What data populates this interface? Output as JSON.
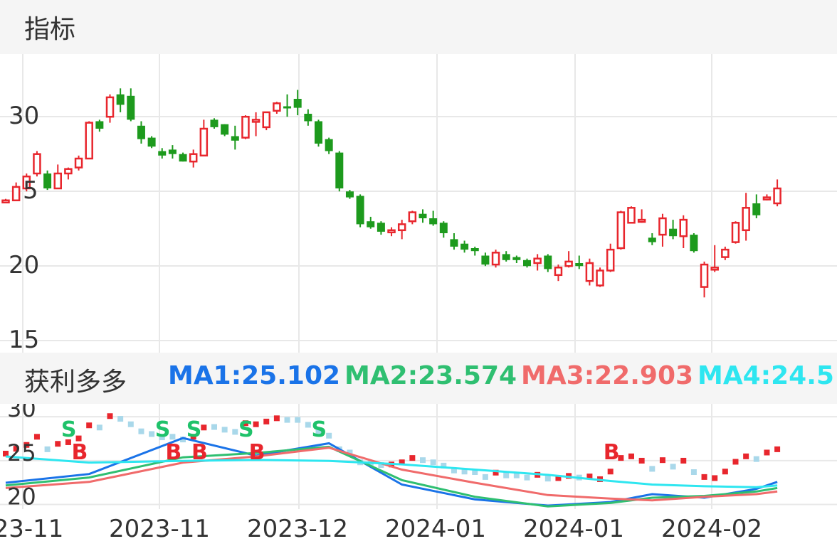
{
  "header": {
    "title": "指标"
  },
  "indicator": {
    "name": "获利多多",
    "ma1": "MA1:25.102",
    "ma2": "MA2:23.574",
    "ma3": "MA3:22.903",
    "ma4": "MA4:24.5"
  },
  "colors": {
    "up": "#e8262d",
    "down": "#1d9a1d",
    "ma1": "#1a73e8",
    "ma2": "#2fbf71",
    "ma3": "#f06b6b",
    "ma4": "#2ee6f0",
    "hist": "#a9d8ea"
  },
  "x_ticks": [
    "23-11",
    "2023-11",
    "2023-12",
    "2024-01",
    "2024-01",
    "2024-02"
  ],
  "chart_data": [
    {
      "type": "candlestick",
      "ylim": [
        14,
        34
      ],
      "y_ticks": [
        30,
        20,
        15
      ],
      "y_tick_label_25": "5",
      "ohlc": [
        [
          24.1,
          24.3,
          24.0,
          24.2
        ],
        [
          24.2,
          25.4,
          24.2,
          25.1
        ],
        [
          25.0,
          26.0,
          24.8,
          25.8
        ],
        [
          26.0,
          27.5,
          25.8,
          27.3
        ],
        [
          26.0,
          26.2,
          24.9,
          25.0
        ],
        [
          25.0,
          26.6,
          25.0,
          26.0
        ],
        [
          26.0,
          26.4,
          25.6,
          26.3
        ],
        [
          26.4,
          27.2,
          26.2,
          27.0
        ],
        [
          27.0,
          29.5,
          27.0,
          29.4
        ],
        [
          29.5,
          29.6,
          28.8,
          29.0
        ],
        [
          29.8,
          31.3,
          29.4,
          31.1
        ],
        [
          31.3,
          31.7,
          30.1,
          30.6
        ],
        [
          31.2,
          31.7,
          29.5,
          29.6
        ],
        [
          29.2,
          29.5,
          28.0,
          28.3
        ],
        [
          28.4,
          28.5,
          27.7,
          27.8
        ],
        [
          27.5,
          27.7,
          27.0,
          27.2
        ],
        [
          27.6,
          27.9,
          27.0,
          27.3
        ],
        [
          27.3,
          27.4,
          26.8,
          26.8
        ],
        [
          26.8,
          27.6,
          26.4,
          27.3
        ],
        [
          27.2,
          29.6,
          27.2,
          29.0
        ],
        [
          29.6,
          29.7,
          29.0,
          29.1
        ],
        [
          29.3,
          29.3,
          28.5,
          28.6
        ],
        [
          28.5,
          29.2,
          27.6,
          28.2
        ],
        [
          28.4,
          29.9,
          28.3,
          29.8
        ],
        [
          29.5,
          30.1,
          28.5,
          29.6
        ],
        [
          29.1,
          30.1,
          28.9,
          30.1
        ],
        [
          30.2,
          30.8,
          30.0,
          30.7
        ],
        [
          30.5,
          31.3,
          29.8,
          30.4
        ],
        [
          31.0,
          31.6,
          29.9,
          30.4
        ],
        [
          30.0,
          30.3,
          29.2,
          29.5
        ],
        [
          29.5,
          29.6,
          27.8,
          28.0
        ],
        [
          28.3,
          28.4,
          27.3,
          27.5
        ],
        [
          27.4,
          27.5,
          24.8,
          25.0
        ],
        [
          24.8,
          24.9,
          24.3,
          24.4
        ],
        [
          24.5,
          24.6,
          22.4,
          22.6
        ],
        [
          22.8,
          23.1,
          22.3,
          22.4
        ],
        [
          22.7,
          22.8,
          21.9,
          22.1
        ],
        [
          22.1,
          22.4,
          21.8,
          22.2
        ],
        [
          22.2,
          22.9,
          21.6,
          22.6
        ],
        [
          22.8,
          23.5,
          22.6,
          23.4
        ],
        [
          23.3,
          23.6,
          22.7,
          23.0
        ],
        [
          23.0,
          23.5,
          22.5,
          22.6
        ],
        [
          22.7,
          22.8,
          21.7,
          22.0
        ],
        [
          21.6,
          22.0,
          20.9,
          21.1
        ],
        [
          21.3,
          21.5,
          20.7,
          20.9
        ],
        [
          21.0,
          21.1,
          20.5,
          20.8
        ],
        [
          20.5,
          20.7,
          19.8,
          19.9
        ],
        [
          19.9,
          20.9,
          19.7,
          20.7
        ],
        [
          20.6,
          20.8,
          20.1,
          20.2
        ],
        [
          20.4,
          20.5,
          20.0,
          20.2
        ],
        [
          20.2,
          20.3,
          19.7,
          19.8
        ],
        [
          20.0,
          20.6,
          19.5,
          20.3
        ],
        [
          20.5,
          20.6,
          19.4,
          19.6
        ],
        [
          19.2,
          19.9,
          18.8,
          19.7
        ],
        [
          19.8,
          20.8,
          19.7,
          20.1
        ],
        [
          20.0,
          20.5,
          19.6,
          19.8
        ],
        [
          18.8,
          20.3,
          18.5,
          20.0
        ],
        [
          18.5,
          19.7,
          18.4,
          19.5
        ],
        [
          19.5,
          21.3,
          19.4,
          20.9
        ],
        [
          21.0,
          23.5,
          20.9,
          23.4
        ],
        [
          22.7,
          23.8,
          22.7,
          23.7
        ],
        [
          22.9,
          23.6,
          22.7,
          22.9
        ],
        [
          21.7,
          22.0,
          21.2,
          21.4
        ],
        [
          21.9,
          23.3,
          21.1,
          23.0
        ],
        [
          22.3,
          22.9,
          21.6,
          21.8
        ],
        [
          21.8,
          23.2,
          21.0,
          22.9
        ],
        [
          21.9,
          22.0,
          20.7,
          20.8
        ],
        [
          18.4,
          20.1,
          17.7,
          19.9
        ],
        [
          19.6,
          21.2,
          19.4,
          19.7
        ],
        [
          20.4,
          21.1,
          20.2,
          20.9
        ],
        [
          21.4,
          22.8,
          21.3,
          22.7
        ],
        [
          22.2,
          24.7,
          21.5,
          23.7
        ],
        [
          24.0,
          24.6,
          23.0,
          23.2
        ],
        [
          24.4,
          24.6,
          24.2,
          24.4
        ],
        [
          24.0,
          25.6,
          23.8,
          25.0
        ]
      ],
      "opens": [],
      "ma": []
    },
    {
      "type": "line",
      "ylim": [
        18.5,
        30.5
      ],
      "y_ticks": [
        30,
        25,
        20
      ],
      "series": [
        {
          "name": "MA1",
          "x": [
            0,
            8,
            17,
            24,
            31,
            38,
            45,
            52,
            58,
            62,
            67,
            72,
            74
          ],
          "y": [
            21.5,
            22.5,
            26.6,
            24.6,
            26.0,
            21.3,
            19.6,
            18.9,
            19.3,
            20.2,
            19.8,
            20.8,
            21.6
          ]
        },
        {
          "name": "MA2",
          "x": [
            0,
            8,
            17,
            24,
            31,
            38,
            45,
            52,
            58,
            62,
            67,
            72,
            74
          ],
          "y": [
            21.2,
            22.1,
            24.4,
            24.9,
            25.6,
            21.8,
            19.9,
            18.8,
            19.2,
            19.8,
            20.0,
            20.5,
            20.9
          ]
        },
        {
          "name": "MA3",
          "x": [
            0,
            8,
            17,
            24,
            31,
            38,
            45,
            52,
            58,
            62,
            67,
            72,
            74
          ],
          "y": [
            20.9,
            21.6,
            23.8,
            24.5,
            25.5,
            23.0,
            21.5,
            20.1,
            19.7,
            19.5,
            19.9,
            20.2,
            20.5
          ]
        },
        {
          "name": "MA4",
          "x": [
            0,
            8,
            17,
            24,
            31,
            38,
            45,
            52,
            58,
            62,
            67,
            72,
            74
          ],
          "y": [
            24.5,
            23.8,
            24.0,
            24.1,
            24.0,
            23.6,
            23.0,
            22.4,
            21.7,
            21.3,
            21.1,
            21.0,
            21.2
          ]
        }
      ],
      "signals": [
        {
          "x": 6,
          "label": "S"
        },
        {
          "x": 7,
          "label": "B"
        },
        {
          "x": 15,
          "label": "S"
        },
        {
          "x": 16,
          "label": "B"
        },
        {
          "x": 18,
          "label": "S"
        },
        {
          "x": 18.5,
          "label": "B"
        },
        {
          "x": 23,
          "label": "S"
        },
        {
          "x": 24,
          "label": "B"
        },
        {
          "x": 30,
          "label": "S"
        },
        {
          "x": 58,
          "label": "B"
        }
      ]
    }
  ]
}
